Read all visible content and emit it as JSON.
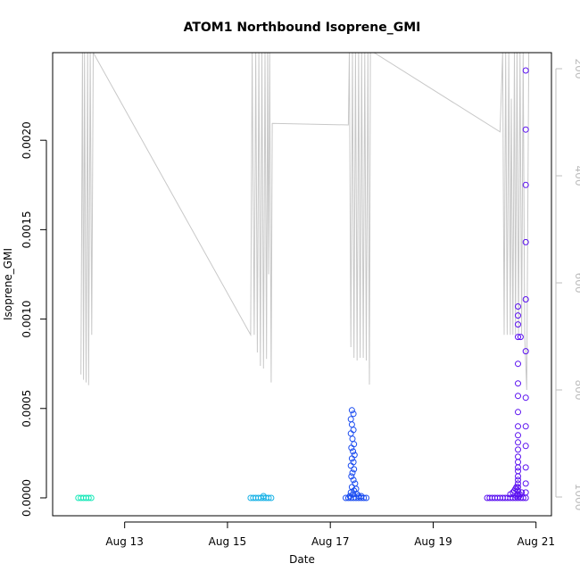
{
  "chart_data": {
    "type": "scatter",
    "title": "ATOM1 Northbound Isoprene_GMI",
    "xlabel": "Date",
    "ylabel": "Isoprene_GMI",
    "x_ticks": [
      "Aug 13",
      "Aug 15",
      "Aug 17",
      "Aug 19",
      "Aug 21"
    ],
    "x_tick_days": [
      13,
      15,
      17,
      19,
      21
    ],
    "xlim_days": [
      11.6,
      21.3
    ],
    "y_ticks": [
      "0.0000",
      "0.0005",
      "0.0010",
      "0.0015",
      "0.0020"
    ],
    "y_tick_values": [
      0,
      0.0005,
      0.001,
      0.0015,
      0.002
    ],
    "ylim": [
      -0.0001,
      0.00249
    ],
    "y2_ticks": [
      "200",
      "400",
      "600",
      "800",
      "1000"
    ],
    "y2_tick_values": [
      200,
      400,
      600,
      800,
      1000
    ],
    "y2lim": [
      1035,
      170
    ],
    "grid": false,
    "series": [
      {
        "color": "#17e8b8",
        "points": [
          [
            12.1,
            0
          ],
          [
            12.15,
            0
          ],
          [
            12.2,
            0
          ],
          [
            12.25,
            0
          ],
          [
            12.3,
            0
          ],
          [
            12.35,
            0
          ]
        ]
      },
      {
        "color": "#19b2e6",
        "points": [
          [
            15.45,
            0
          ],
          [
            15.5,
            0
          ],
          [
            15.55,
            0
          ],
          [
            15.6,
            0
          ],
          [
            15.65,
            0
          ],
          [
            15.7,
            0
          ],
          [
            15.75,
            0
          ],
          [
            15.8,
            0
          ],
          [
            15.85,
            0
          ],
          [
            15.7,
            1e-05
          ]
        ]
      },
      {
        "color": "#1a4cf0",
        "points": [
          [
            17.3,
            0
          ],
          [
            17.35,
            0
          ],
          [
            17.4,
            0
          ],
          [
            17.45,
            0
          ],
          [
            17.5,
            0
          ],
          [
            17.55,
            0
          ],
          [
            17.6,
            0
          ],
          [
            17.65,
            0
          ],
          [
            17.7,
            0
          ],
          [
            17.42,
            0.00049
          ],
          [
            17.45,
            0.00047
          ],
          [
            17.4,
            0.00044
          ],
          [
            17.42,
            0.00041
          ],
          [
            17.45,
            0.00038
          ],
          [
            17.4,
            0.00036
          ],
          [
            17.43,
            0.00033
          ],
          [
            17.46,
            0.0003
          ],
          [
            17.41,
            0.00028
          ],
          [
            17.44,
            0.00026
          ],
          [
            17.47,
            0.00024
          ],
          [
            17.42,
            0.00022
          ],
          [
            17.45,
            0.0002
          ],
          [
            17.4,
            0.00018
          ],
          [
            17.46,
            0.00016
          ],
          [
            17.43,
            0.00014
          ],
          [
            17.41,
            0.00012
          ],
          [
            17.45,
            0.0001
          ],
          [
            17.48,
            8e-05
          ],
          [
            17.42,
            6e-05
          ],
          [
            17.5,
            5e-05
          ],
          [
            17.46,
            4e-05
          ],
          [
            17.4,
            3e-05
          ],
          [
            17.52,
            2e-05
          ],
          [
            17.44,
            2e-05
          ],
          [
            17.55,
            1e-05
          ],
          [
            17.38,
            1e-05
          ],
          [
            17.6,
            1e-05
          ]
        ]
      },
      {
        "color": "#5a10f0",
        "points": [
          [
            20.05,
            0
          ],
          [
            20.1,
            0
          ],
          [
            20.15,
            0
          ],
          [
            20.2,
            0
          ],
          [
            20.25,
            0
          ],
          [
            20.3,
            0
          ],
          [
            20.35,
            0
          ],
          [
            20.4,
            0
          ],
          [
            20.45,
            0
          ],
          [
            20.5,
            0
          ],
          [
            20.55,
            0
          ],
          [
            20.6,
            0
          ],
          [
            20.65,
            0
          ],
          [
            20.7,
            0
          ],
          [
            20.75,
            0
          ],
          [
            20.8,
            0
          ],
          [
            20.8,
            0.00239
          ],
          [
            20.8,
            0.00206
          ],
          [
            20.8,
            0.00175
          ],
          [
            20.8,
            0.00143
          ],
          [
            20.8,
            0.00111
          ],
          [
            20.8,
            0.00082
          ],
          [
            20.8,
            0.00056
          ],
          [
            20.8,
            0.0004
          ],
          [
            20.8,
            0.00029
          ],
          [
            20.8,
            0.00017
          ],
          [
            20.8,
            8e-05
          ],
          [
            20.8,
            3e-05
          ],
          [
            20.65,
            0.00107
          ],
          [
            20.65,
            0.00102
          ],
          [
            20.65,
            0.00097
          ],
          [
            20.65,
            0.0009
          ],
          [
            20.65,
            0.00075
          ],
          [
            20.65,
            0.00064
          ],
          [
            20.65,
            0.00057
          ],
          [
            20.65,
            0.00048
          ],
          [
            20.65,
            0.0004
          ],
          [
            20.65,
            0.00035
          ],
          [
            20.65,
            0.00031
          ],
          [
            20.65,
            0.00027
          ],
          [
            20.65,
            0.00023
          ],
          [
            20.65,
            0.0002
          ],
          [
            20.65,
            0.00017
          ],
          [
            20.65,
            0.00015
          ],
          [
            20.65,
            0.00012
          ],
          [
            20.65,
            0.0001
          ],
          [
            20.65,
            8e-05
          ],
          [
            20.65,
            6e-05
          ],
          [
            20.65,
            4e-05
          ],
          [
            20.65,
            2e-05
          ],
          [
            20.7,
            0.0009
          ],
          [
            20.6,
            5e-05
          ],
          [
            20.55,
            3e-05
          ],
          [
            20.5,
            2e-05
          ],
          [
            20.62,
            1e-05
          ],
          [
            20.68,
            2e-05
          ],
          [
            20.72,
            3e-05
          ],
          [
            20.58,
            4e-05
          ],
          [
            20.62,
            6e-05
          ],
          [
            20.67,
            1e-05
          ]
        ]
      }
    ],
    "gray_line": {
      "color": "#c8c8c8",
      "points": [
        [
          12.15,
          771
        ],
        [
          12.18,
          170
        ],
        [
          12.2,
          781
        ],
        [
          12.22,
          170
        ],
        [
          12.25,
          786
        ],
        [
          12.28,
          170
        ],
        [
          12.3,
          791
        ],
        [
          12.33,
          170
        ],
        [
          12.36,
          697
        ],
        [
          12.39,
          170
        ],
        [
          15.45,
          697
        ],
        [
          15.48,
          170
        ],
        [
          15.52,
          697
        ],
        [
          15.55,
          170
        ],
        [
          15.58,
          730
        ],
        [
          15.61,
          170
        ],
        [
          15.64,
          755
        ],
        [
          15.67,
          170
        ],
        [
          15.7,
          760
        ],
        [
          15.73,
          170
        ],
        [
          15.76,
          742
        ],
        [
          15.78,
          170
        ],
        [
          15.8,
          584
        ],
        [
          15.82,
          170
        ],
        [
          15.85,
          786
        ],
        [
          15.87,
          302
        ],
        [
          17.35,
          305
        ],
        [
          17.37,
          170
        ],
        [
          17.4,
          720
        ],
        [
          17.43,
          170
        ],
        [
          17.46,
          740
        ],
        [
          17.49,
          170
        ],
        [
          17.52,
          745
        ],
        [
          17.55,
          170
        ],
        [
          17.58,
          740
        ],
        [
          17.61,
          170
        ],
        [
          17.64,
          740
        ],
        [
          17.67,
          170
        ],
        [
          17.7,
          745
        ],
        [
          17.73,
          170
        ],
        [
          17.76,
          790
        ],
        [
          17.78,
          170
        ],
        [
          17.85,
          170
        ],
        [
          20.3,
          318
        ],
        [
          20.35,
          170
        ],
        [
          20.38,
          697
        ],
        [
          20.41,
          170
        ],
        [
          20.44,
          697
        ],
        [
          20.47,
          170
        ],
        [
          20.5,
          697
        ],
        [
          20.52,
          256
        ],
        [
          20.55,
          697
        ],
        [
          20.58,
          170
        ],
        [
          20.6,
          697
        ],
        [
          20.63,
          170
        ],
        [
          20.66,
          697
        ],
        [
          20.69,
          170
        ],
        [
          20.72,
          697
        ],
        [
          20.75,
          170
        ],
        [
          20.78,
          697
        ],
        [
          20.82,
          800
        ],
        [
          20.86,
          170
        ]
      ]
    }
  }
}
